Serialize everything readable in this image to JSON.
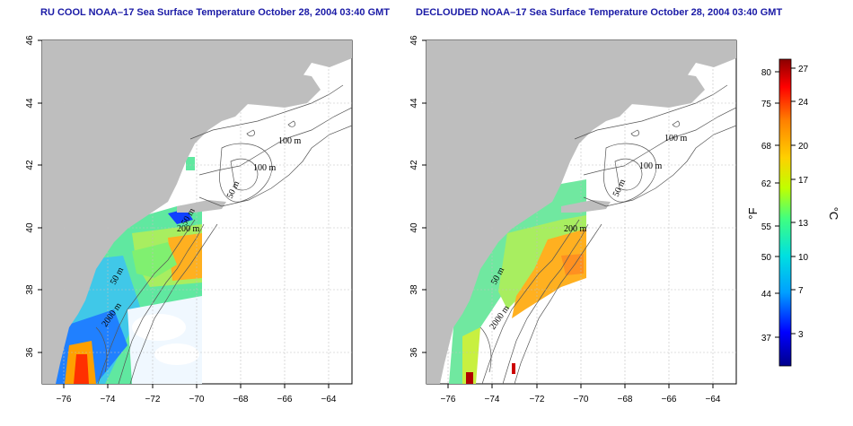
{
  "panels": [
    {
      "title": "RU COOL NOAA–17 Sea Surface Temperature October 28, 2004 03:40 GMT",
      "contour_labels": [
        "100 m",
        "100 m",
        "50 m",
        "200 m",
        "50 m",
        "50 m",
        "2000 m"
      ]
    },
    {
      "title": "DECLOUDED NOAA–17 Sea Surface Temperature October 28, 2004 03:40 GMT",
      "contour_labels": [
        "100 m",
        "100 m",
        "50 m",
        "200 m",
        "50 m",
        "2000 m"
      ]
    }
  ],
  "axes": {
    "x_ticks": [
      "−76",
      "−74",
      "−72",
      "−70",
      "−68",
      "−66",
      "−64"
    ],
    "y_ticks": [
      "36",
      "38",
      "40",
      "42",
      "44",
      "46"
    ],
    "xlim": [
      -77,
      -63
    ],
    "ylim": [
      35,
      46
    ]
  },
  "colorbar": {
    "fahrenheit_ticks": [
      "80",
      "75",
      "68",
      "62",
      "55",
      "50",
      "44",
      "37"
    ],
    "celsius_ticks": [
      "27",
      "24",
      "20",
      "17",
      "13",
      "10",
      "7",
      "3"
    ],
    "unit_f": "°F",
    "unit_c": "°C",
    "colors": [
      "#00008b",
      "#0000ff",
      "#00a0ff",
      "#00e0e0",
      "#40ff80",
      "#c0ff00",
      "#ffd000",
      "#ff8000",
      "#ff0000",
      "#8b0000"
    ]
  }
}
